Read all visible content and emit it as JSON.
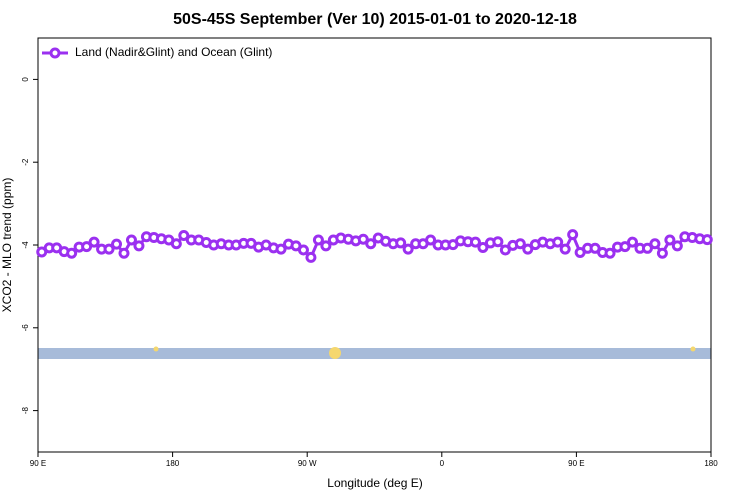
{
  "chart_data": {
    "type": "line",
    "title": "50S-45S September (Ver 10)   2015-01-01 to 2020-12-18",
    "x_label": "Longitude (deg E)",
    "y_label": "XCO2 - MLO trend (ppm)",
    "legend_position": "top-left",
    "x": [
      92.5,
      97.5,
      102.5,
      107.5,
      112.5,
      117.5,
      122.5,
      127.5,
      132.5,
      137.5,
      142.5,
      147.5,
      152.5,
      157.5,
      162.5,
      167.5,
      172.5,
      177.5,
      182.5,
      187.5,
      192.5,
      197.5,
      202.5,
      207.5,
      212.5,
      217.5,
      222.5,
      227.5,
      232.5,
      237.5,
      242.5,
      247.5,
      252.5,
      257.5,
      262.5,
      267.5,
      272.5,
      277.5,
      282.5,
      287.5,
      292.5,
      297.5,
      302.5,
      307.5,
      312.5,
      317.5,
      322.5,
      327.5,
      332.5,
      337.5,
      342.5,
      347.5,
      352.5,
      357.5,
      362.5,
      367.5,
      372.5,
      377.5,
      382.5,
      387.5,
      392.5,
      397.5,
      402.5,
      407.5,
      412.5,
      417.5,
      422.5,
      427.5,
      432.5,
      437.5,
      442.5,
      447.5,
      452.5,
      457.5,
      462.5,
      467.5,
      472.5,
      477.5,
      482.5,
      487.5,
      492.5,
      497.5,
      502.5,
      507.5,
      512.5,
      517.5,
      522.5,
      527.5,
      532.5,
      537.5
    ],
    "series": [
      {
        "name": "Land (Nadir&Glint) and Ocean (Glint)",
        "color": "#9b30f0",
        "values": [
          -4.17,
          -4.07,
          -4.07,
          -4.16,
          -4.2,
          -4.05,
          -4.04,
          -3.93,
          -4.1,
          -4.1,
          -3.98,
          -4.2,
          -3.88,
          -4.02,
          -3.8,
          -3.82,
          -3.85,
          -3.88,
          -3.97,
          -3.77,
          -3.88,
          -3.88,
          -3.94,
          -4.0,
          -3.97,
          -4.0,
          -4.0,
          -3.96,
          -3.96,
          -4.05,
          -4.0,
          -4.07,
          -4.1,
          -3.98,
          -4.02,
          -4.12,
          -4.3,
          -3.88,
          -4.02,
          -3.88,
          -3.83,
          -3.86,
          -3.9,
          -3.86,
          -3.97,
          -3.83,
          -3.91,
          -3.97,
          -3.95,
          -4.1,
          -3.97,
          -3.97,
          -3.88,
          -4.0,
          -4.0,
          -3.99,
          -3.9,
          -3.92,
          -3.93,
          -4.06,
          -3.95,
          -3.92,
          -4.12,
          -4.01,
          -3.97,
          -4.1,
          -3.99,
          -3.93,
          -3.97,
          -3.93,
          -4.1,
          -3.75,
          -4.18,
          -4.08,
          -4.08,
          -4.18,
          -4.2,
          -4.05,
          -4.04,
          -3.93,
          -4.08,
          -4.08,
          -3.97,
          -4.2,
          -3.88,
          -4.02,
          -3.8,
          -3.82,
          -3.85,
          -3.87
        ]
      }
    ],
    "xlim": [
      90,
      540
    ],
    "xticks": [
      {
        "value": 90,
        "label": "90 E"
      },
      180,
      {
        "value": 270,
        "label": "90 W"
      },
      {
        "value": 360,
        "label": "0"
      },
      {
        "value": 450,
        "label": "90 E"
      },
      {
        "value": 540,
        "label": "180"
      }
    ],
    "ylim": [
      -9,
      1
    ],
    "yticks": [
      0,
      -2,
      -4,
      -6,
      -8
    ]
  }
}
